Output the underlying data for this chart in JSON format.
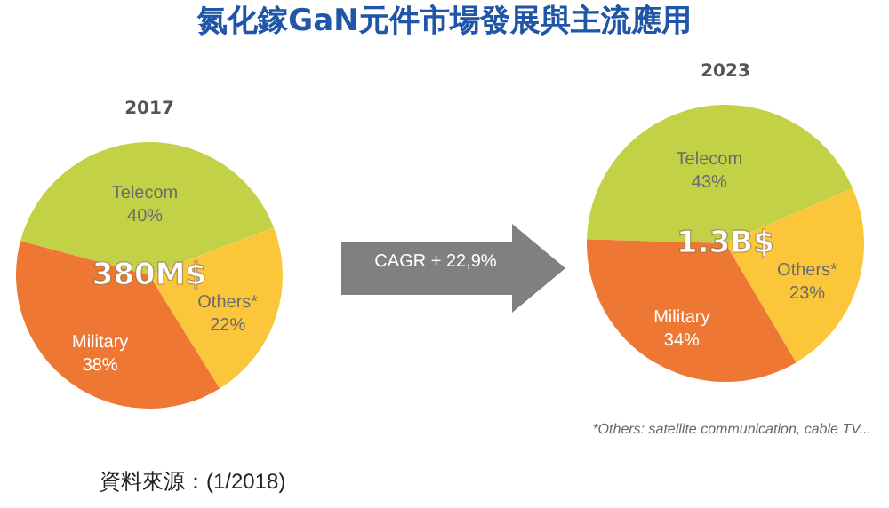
{
  "chart_data": [
    {
      "type": "pie",
      "title": "2017",
      "categories": [
        "Telecom",
        "Others*",
        "Military"
      ],
      "values": [
        40,
        22,
        38
      ],
      "value_labels": [
        "40%",
        "22%",
        "38%"
      ],
      "colors": [
        "#c2d146",
        "#fcc63a",
        "#ee7733"
      ],
      "legend": false,
      "annotations": [
        "氮化鎵GaN元件市場發展與主流應用",
        "380M$",
        "資料來源：(1/2018)"
      ]
    },
    {
      "type": "pie",
      "title": "2023",
      "categories": [
        "Telecom",
        "Others*",
        "Military"
      ],
      "values": [
        43,
        23,
        34
      ],
      "value_labels": [
        "43%",
        "23%",
        "34%"
      ],
      "colors": [
        "#c2d146",
        "#fcc63a",
        "#ee7733"
      ],
      "legend": false,
      "annotations": [
        "1.3B$",
        "CAGR + 22,9%",
        "*Others: satellite communication, cable TV..."
      ]
    }
  ]
}
